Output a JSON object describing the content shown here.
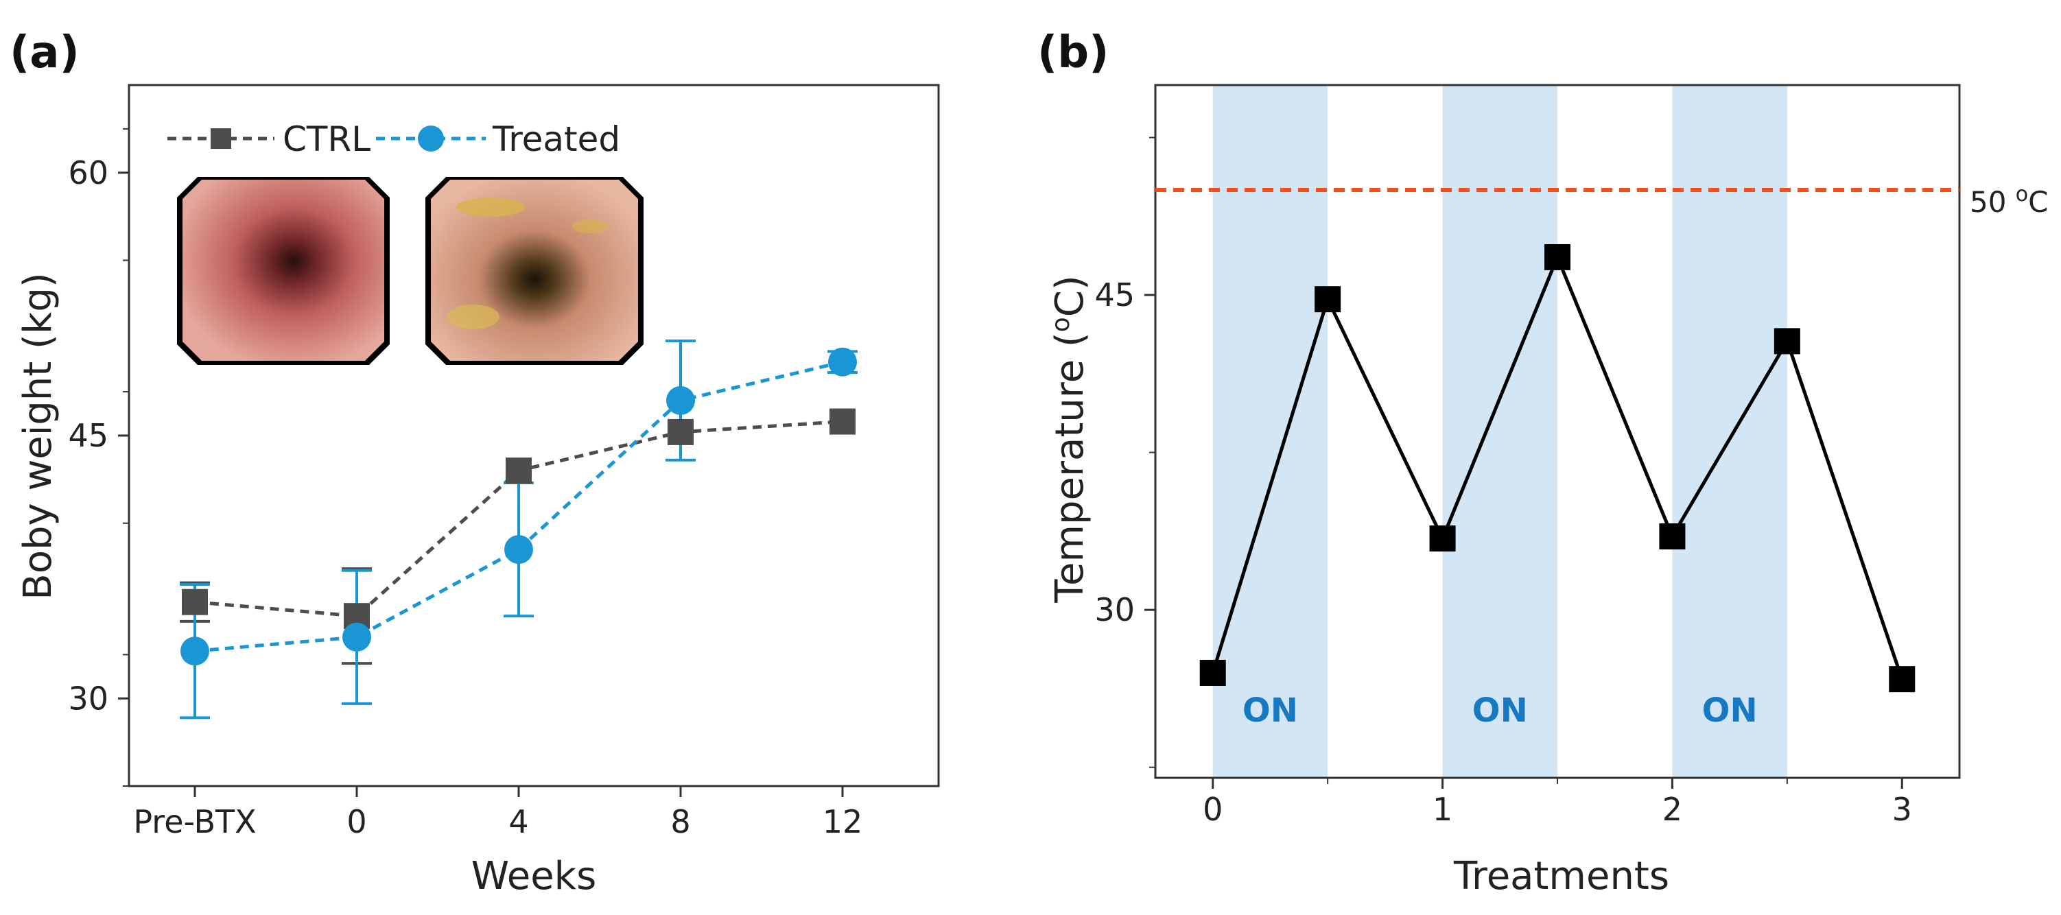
{
  "chart_data": [
    {
      "panel": "(a)",
      "type": "line",
      "xlabel": "Weeks",
      "ylabel": "Boby weight (kg)",
      "categories": [
        "Pre-BTX",
        "0",
        "4",
        "8",
        "12"
      ],
      "yticks": [
        30,
        45,
        60
      ],
      "ylim": [
        25,
        65
      ],
      "grid": false,
      "legend_position": "top-left",
      "series": [
        {
          "name": "CTRL",
          "marker": "square",
          "color": "#4d4d4d",
          "line": "dashed",
          "values": [
            35.5,
            34.7,
            43.0,
            45.2,
            45.8
          ],
          "errors": [
            1.1,
            2.7,
            0,
            0,
            0
          ]
        },
        {
          "name": "Treated",
          "marker": "circle",
          "color": "#1a96d4",
          "line": "dashed",
          "values": [
            32.7,
            33.5,
            38.5,
            47.0,
            49.2
          ],
          "errors": [
            3.8,
            3.8,
            3.8,
            3.4,
            0.6
          ]
        }
      ],
      "inset_images": [
        "endoscopy-image-ctrl",
        "endoscopy-image-treated"
      ]
    },
    {
      "panel": "(b)",
      "type": "line",
      "xlabel": "Treatments",
      "ylabel": "Temperature (oC)",
      "xticks": [
        0,
        1,
        2,
        3
      ],
      "yticks": [
        30,
        45
      ],
      "ylim": [
        22,
        55
      ],
      "xlim": [
        -0.25,
        3.25
      ],
      "grid": false,
      "series": [
        {
          "marker": "square",
          "color": "#000000",
          "line": "solid",
          "x": [
            0,
            0.5,
            1,
            1.5,
            2,
            2.5,
            3
          ],
          "values": [
            27,
            44.8,
            33.4,
            46.8,
            33.5,
            42.8,
            26.7
          ]
        }
      ],
      "reference_line": {
        "value": 50,
        "label": "50 oC",
        "color": "#f0501e",
        "style": "dashed"
      },
      "shaded_regions": [
        {
          "from": 0,
          "to": 0.5,
          "label": "ON"
        },
        {
          "from": 1,
          "to": 1.5,
          "label": "ON"
        },
        {
          "from": 2,
          "to": 2.5,
          "label": "ON"
        }
      ],
      "shade_color": "#d2e6f5"
    }
  ]
}
